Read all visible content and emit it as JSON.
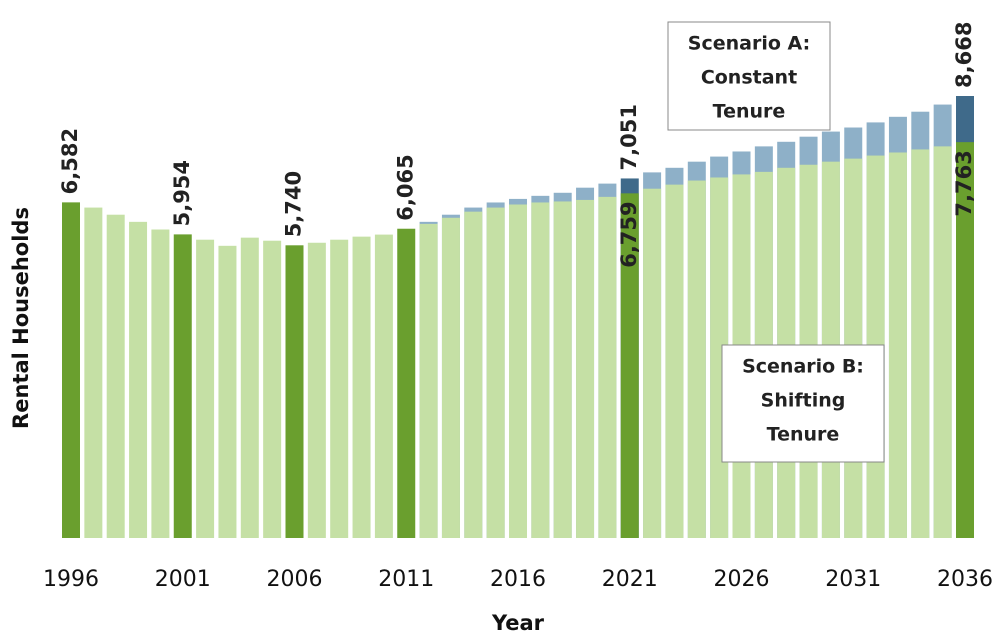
{
  "chart_data": {
    "type": "bar",
    "y_label": "Rental Households",
    "x_label": "Year",
    "categories": [
      "1996",
      null,
      null,
      null,
      null,
      "2001",
      null,
      null,
      null,
      null,
      "2006",
      null,
      null,
      null,
      null,
      "2011",
      null,
      null,
      null,
      null,
      "2016",
      null,
      null,
      null,
      null,
      "2021",
      null,
      null,
      null,
      null,
      "2026",
      null,
      null,
      null,
      null,
      "2031",
      null,
      null,
      null,
      null,
      "2036"
    ],
    "series": [
      {
        "name": "Scenario A: Constant Tenure",
        "color": "#8eb0c8",
        "highlight_color": "#3f6a8a",
        "values": [
          null,
          null,
          null,
          null,
          null,
          null,
          null,
          null,
          null,
          null,
          null,
          null,
          null,
          null,
          null,
          null,
          6200,
          6340,
          6480,
          6580,
          6650,
          6710,
          6770,
          6870,
          6950,
          7051,
          7170,
          7260,
          7380,
          7480,
          7580,
          7680,
          7770,
          7870,
          7970,
          8050,
          8150,
          8260,
          8360,
          8500,
          8668
        ],
        "value_labels": [
          null,
          null,
          null,
          null,
          null,
          null,
          null,
          null,
          null,
          null,
          null,
          null,
          null,
          null,
          null,
          null,
          null,
          null,
          null,
          null,
          null,
          null,
          null,
          null,
          null,
          "7,051",
          null,
          null,
          null,
          null,
          null,
          null,
          null,
          null,
          null,
          null,
          null,
          null,
          null,
          null,
          "8,668"
        ]
      },
      {
        "name": "Scenario B: Shifting Tenure",
        "color": "#c5e0a5",
        "highlight_color": "#6a9f2e",
        "values": [
          6582,
          6480,
          6340,
          6200,
          6050,
          5954,
          5850,
          5730,
          5890,
          5830,
          5740,
          5790,
          5850,
          5910,
          5950,
          6065,
          6160,
          6280,
          6400,
          6480,
          6540,
          6580,
          6600,
          6630,
          6690,
          6759,
          6850,
          6930,
          7010,
          7070,
          7130,
          7180,
          7260,
          7320,
          7380,
          7440,
          7500,
          7560,
          7620,
          7680,
          7763
        ],
        "value_labels": [
          "6,582",
          null,
          null,
          null,
          null,
          "5,954",
          null,
          null,
          null,
          null,
          "5,740",
          null,
          null,
          null,
          null,
          "6,065",
          null,
          null,
          null,
          null,
          null,
          null,
          null,
          null,
          null,
          "6,759",
          null,
          null,
          null,
          null,
          null,
          null,
          null,
          null,
          null,
          null,
          null,
          null,
          null,
          null,
          "7,763"
        ]
      }
    ],
    "annotations": [
      {
        "lines": [
          "Scenario A:",
          "Constant",
          "Tenure"
        ]
      },
      {
        "lines": [
          "Scenario B:",
          "Shifting",
          "Tenure"
        ]
      }
    ]
  }
}
